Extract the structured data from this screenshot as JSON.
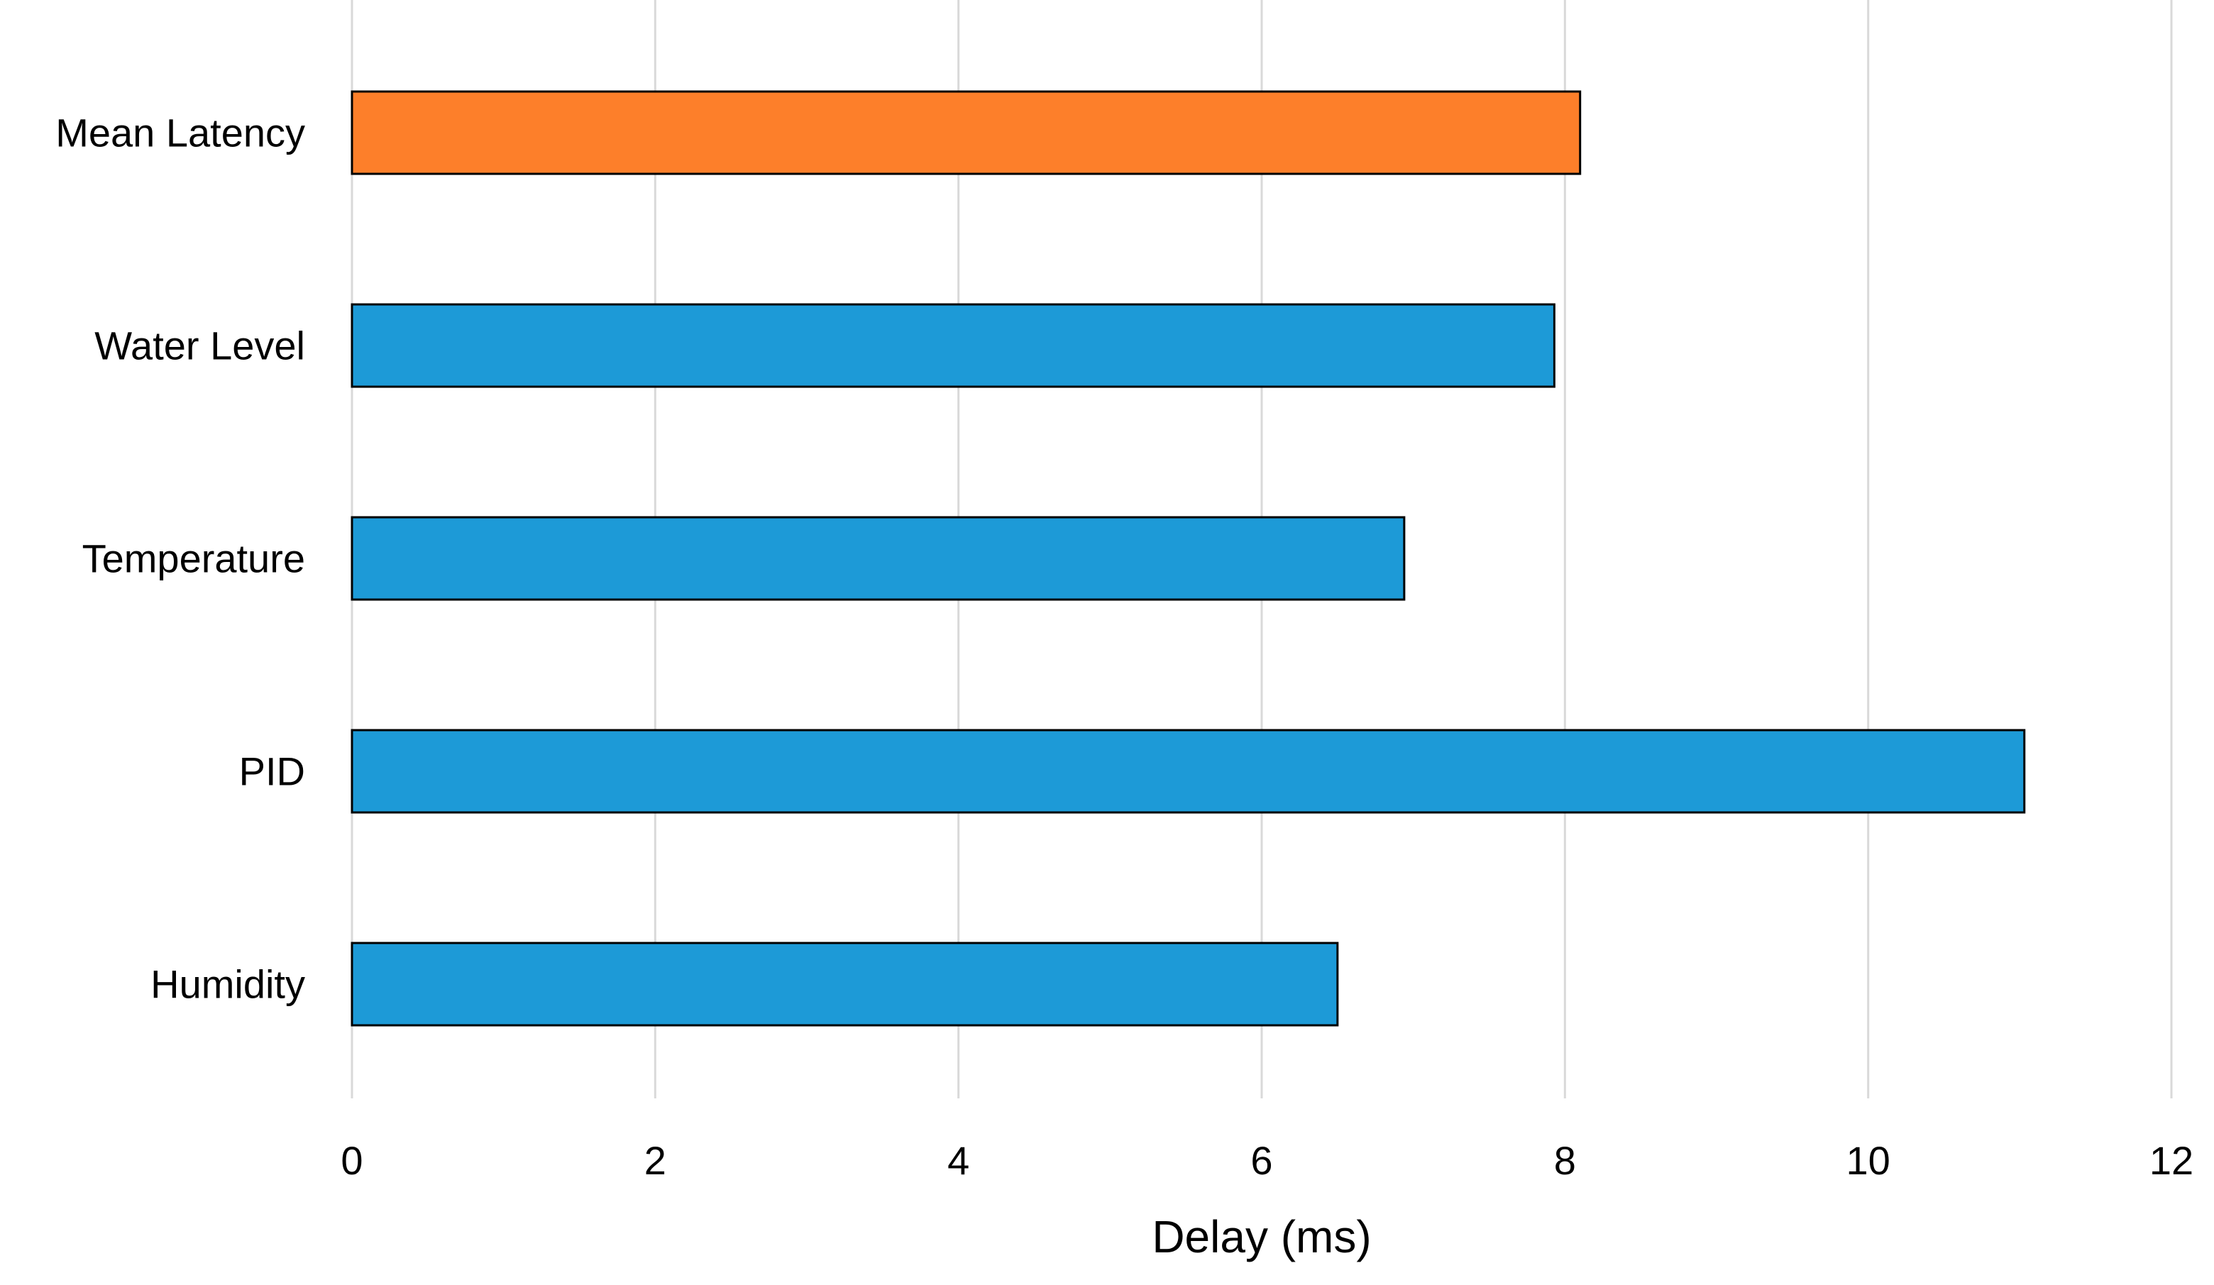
{
  "chart_data": {
    "type": "bar",
    "orientation": "horizontal",
    "title": "",
    "xlabel": "Delay (ms)",
    "ylabel": "",
    "xlim": [
      0,
      12
    ],
    "xticks": [
      0,
      2,
      4,
      6,
      8,
      10,
      12
    ],
    "grid": "vertical",
    "legend": "none",
    "categories": [
      "Mean Latency",
      "Water Level",
      "Temperature",
      "PID",
      "Humidity"
    ],
    "values": [
      8.1,
      7.93,
      6.94,
      11.03,
      6.5
    ],
    "bar_colors": [
      "#fd7f2a",
      "#1d9ad7",
      "#1d9ad7",
      "#1d9ad7",
      "#1d9ad7"
    ]
  }
}
